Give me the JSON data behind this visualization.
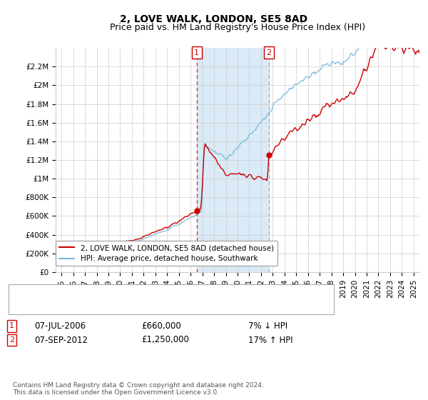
{
  "title": "2, LOVE WALK, LONDON, SE5 8AD",
  "subtitle": "Price paid vs. HM Land Registry's House Price Index (HPI)",
  "title_fontsize": 10,
  "subtitle_fontsize": 9,
  "xlim": [
    1994.5,
    2025.5
  ],
  "ylim": [
    0,
    2400000
  ],
  "yticks": [
    0,
    200000,
    400000,
    600000,
    800000,
    1000000,
    1200000,
    1400000,
    1600000,
    1800000,
    2000000,
    2200000
  ],
  "ytick_labels": [
    "£0",
    "£200K",
    "£400K",
    "£600K",
    "£800K",
    "£1M",
    "£1.2M",
    "£1.4M",
    "£1.6M",
    "£1.8M",
    "£2M",
    "£2.2M"
  ],
  "xtick_years": [
    1995,
    1996,
    1997,
    1998,
    1999,
    2000,
    2001,
    2002,
    2003,
    2004,
    2005,
    2006,
    2007,
    2008,
    2009,
    2010,
    2011,
    2012,
    2013,
    2014,
    2015,
    2016,
    2017,
    2018,
    2019,
    2020,
    2021,
    2022,
    2023,
    2024,
    2025
  ],
  "hpi_color": "#7ab8d9",
  "price_color": "#cc0000",
  "shaded_color": "#daeaf7",
  "sale1_x": 2006.52,
  "sale1_y": 660000,
  "sale2_x": 2012.68,
  "sale2_y": 1250000,
  "legend_line1": "2, LOVE WALK, LONDON, SE5 8AD (detached house)",
  "legend_line2": "HPI: Average price, detached house, Southwark",
  "sale1_date": "07-JUL-2006",
  "sale1_price": "£660,000",
  "sale1_hpi": "7% ↓ HPI",
  "sale2_date": "07-SEP-2012",
  "sale2_price": "£1,250,000",
  "sale2_hpi": "17% ↑ HPI",
  "footnote": "Contains HM Land Registry data © Crown copyright and database right 2024.\nThis data is licensed under the Open Government Licence v3.0.",
  "background_color": "#ffffff",
  "grid_color": "#cccccc"
}
